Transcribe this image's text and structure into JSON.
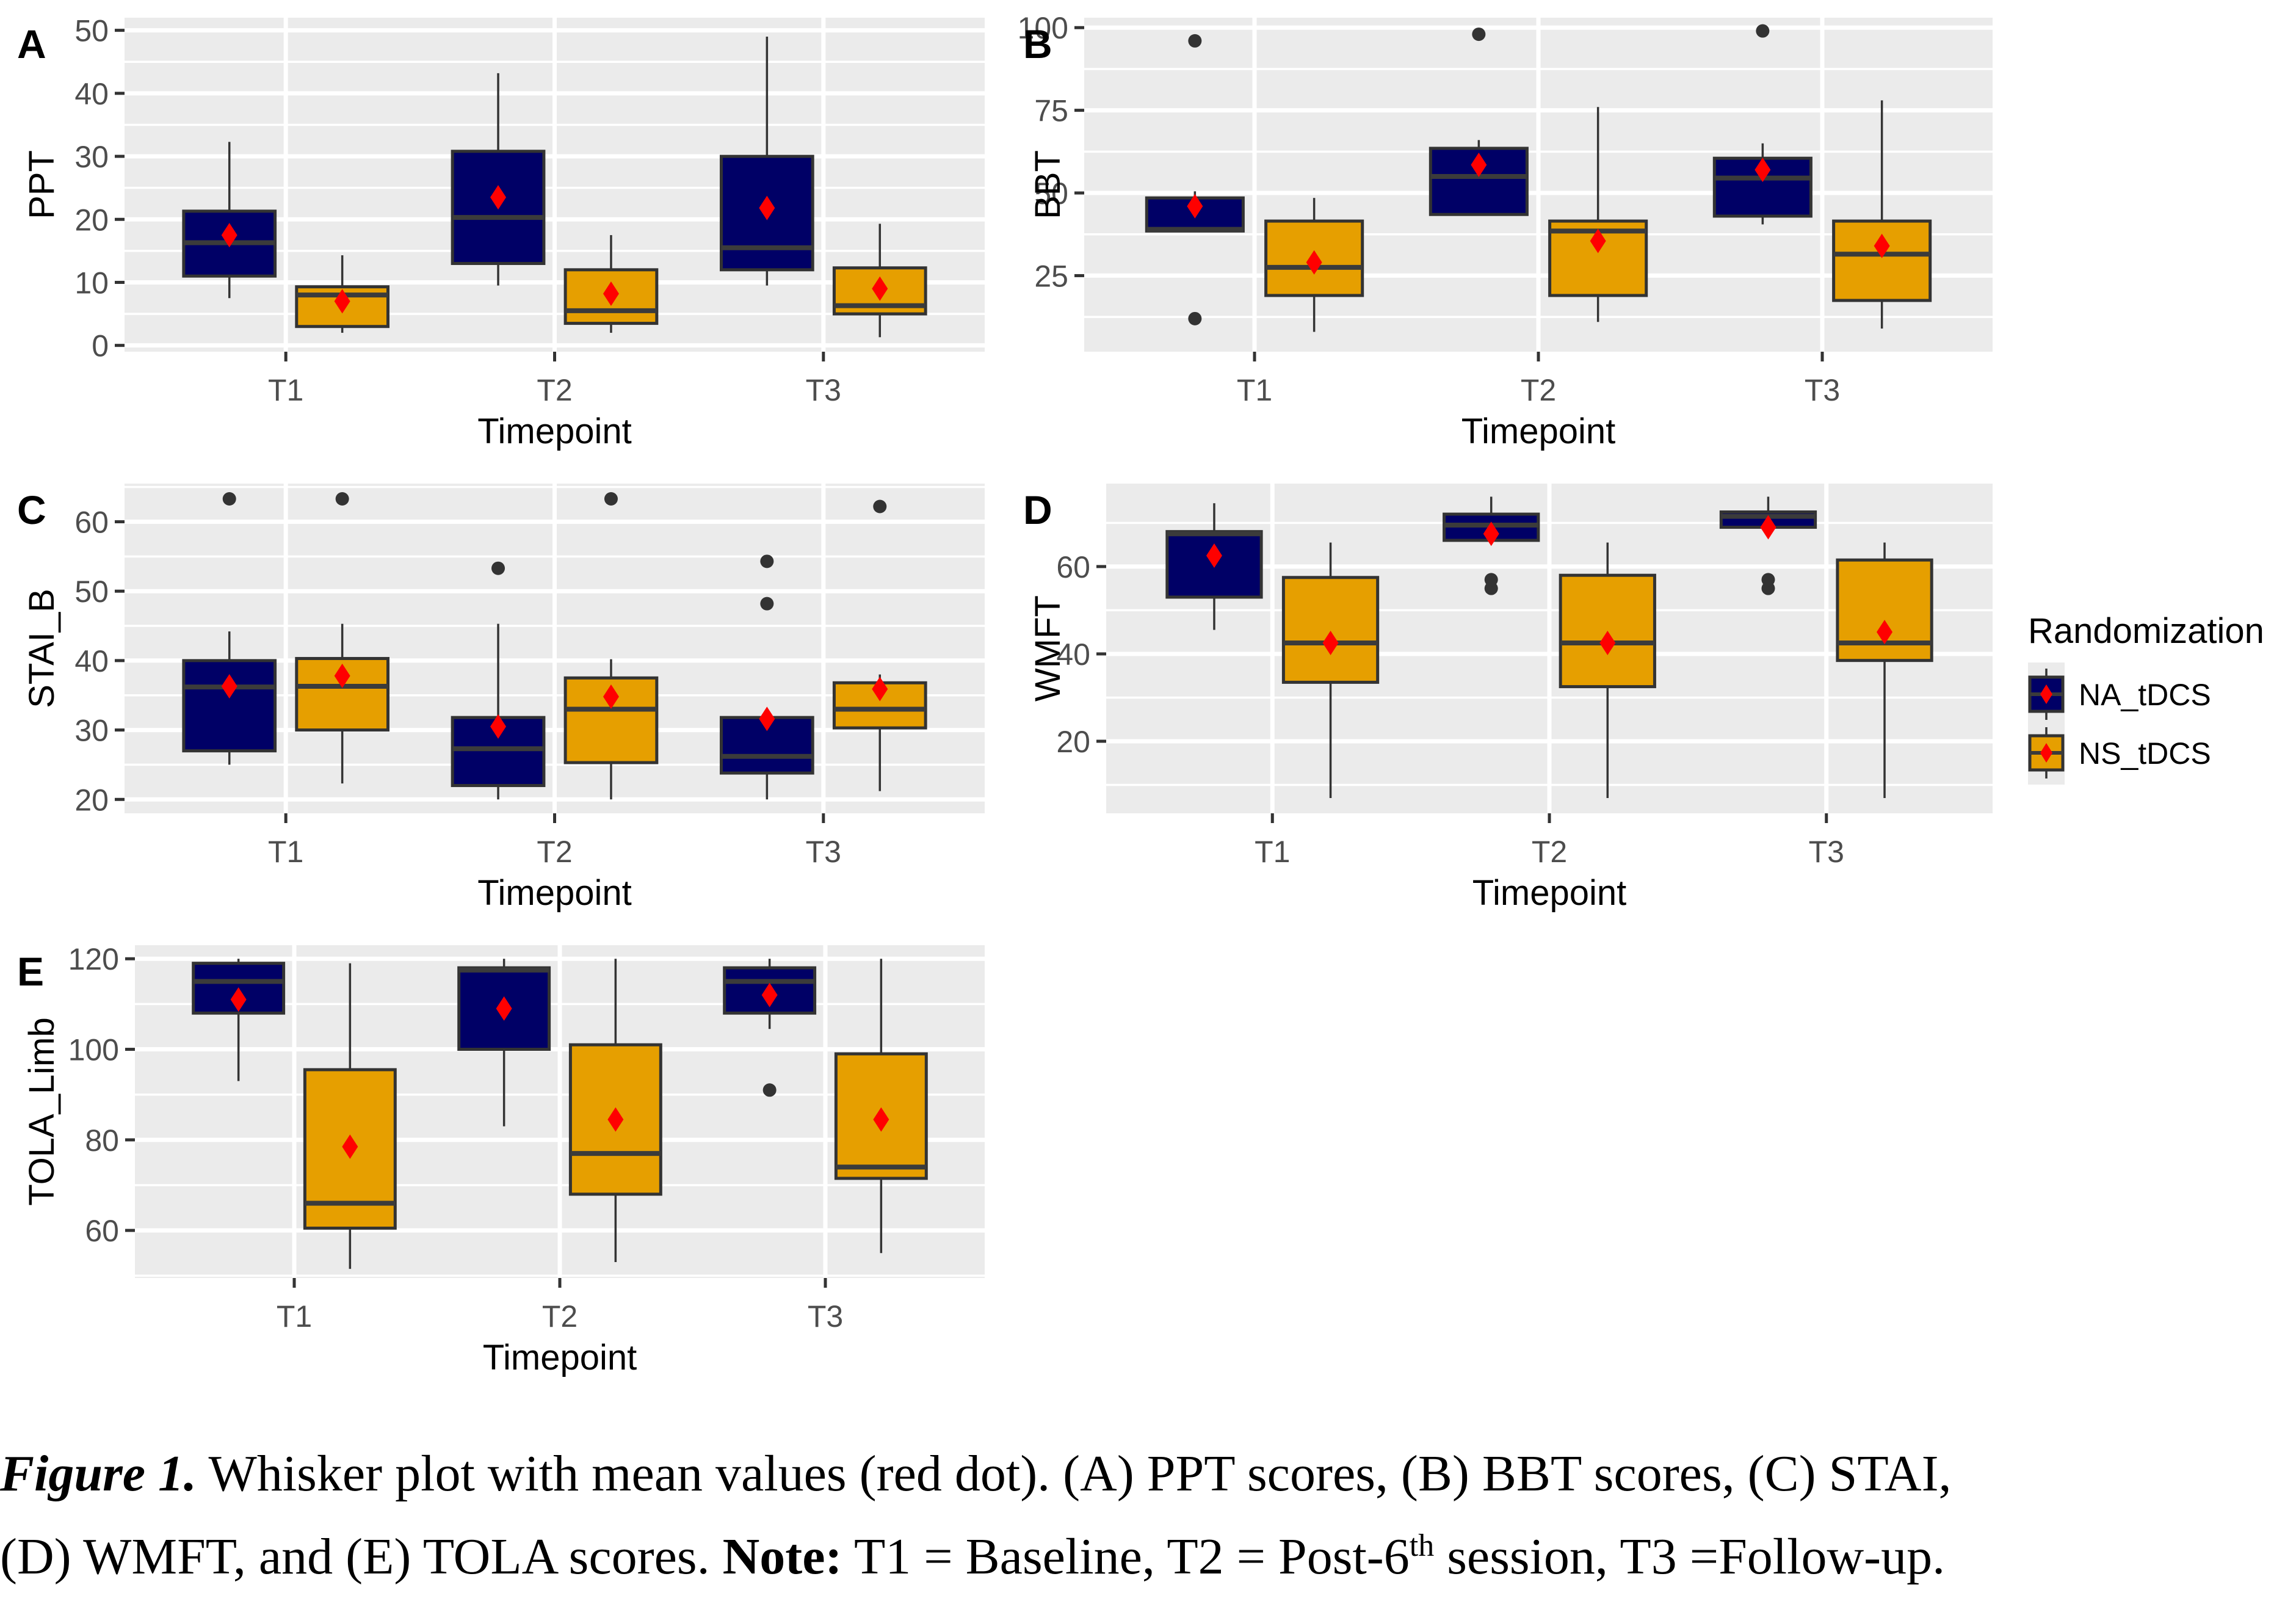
{
  "colors": {
    "NA_tDCS": "#000066",
    "NS_tDCS": "#E69F00",
    "mean": "#FF0000",
    "outlier": "#333333",
    "panel_bg": "#EBEBEB",
    "grid": "#FFFFFF",
    "median": "#3B3B3B"
  },
  "legend": {
    "title": "Randomization",
    "items": [
      "NA_tDCS",
      "NS_tDCS"
    ],
    "position": "right"
  },
  "caption": {
    "figure_label": "Figure 1.",
    "line1_rest": " Whisker plot with mean values (red dot). (A) PPT scores, (B) BBT scores, (C) STAI,",
    "line2_a": "(D) WMFT, and (E) TOLA scores. ",
    "note_label": "Note:",
    "line2_b": " T1 = Baseline, T2 = Post-6",
    "sup": "th",
    "line2_c": " session, T3 =Follow-up."
  },
  "chart_data": [
    {
      "type": "box",
      "panel": "A",
      "ylabel": "PPT",
      "xlabel": "Timepoint",
      "categories": [
        "T1",
        "T2",
        "T3"
      ],
      "ylim": [
        -1,
        52
      ],
      "yticks": [
        0,
        10,
        20,
        30,
        40,
        50
      ],
      "series": [
        {
          "name": "NA_tDCS",
          "boxes": [
            {
              "lower": 7.5,
              "q1": 11,
              "median": 16.3,
              "q3": 21.3,
              "upper": 32.3,
              "mean": 17.5,
              "outliers": []
            },
            {
              "lower": 9.5,
              "q1": 13,
              "median": 20.3,
              "q3": 30.8,
              "upper": 43.2,
              "mean": 23.5,
              "outliers": []
            },
            {
              "lower": 9.5,
              "q1": 12,
              "median": 15.5,
              "q3": 30,
              "upper": 49,
              "mean": 21.8,
              "outliers": []
            }
          ]
        },
        {
          "name": "NS_tDCS",
          "boxes": [
            {
              "lower": 2,
              "q1": 3,
              "median": 8,
              "q3": 9.3,
              "upper": 14.3,
              "mean": 7,
              "outliers": []
            },
            {
              "lower": 2,
              "q1": 3.5,
              "median": 5.5,
              "q3": 12,
              "upper": 17.5,
              "mean": 8.2,
              "outliers": []
            },
            {
              "lower": 1.3,
              "q1": 5,
              "median": 6.3,
              "q3": 12.3,
              "upper": 19.3,
              "mean": 9,
              "outliers": []
            }
          ]
        }
      ]
    },
    {
      "type": "box",
      "panel": "B",
      "ylabel": "BBT",
      "xlabel": "Timepoint",
      "categories": [
        "T1",
        "T2",
        "T3"
      ],
      "ylim": [
        2,
        103
      ],
      "yticks": [
        25,
        50,
        75,
        100
      ],
      "series": [
        {
          "name": "NA_tDCS",
          "boxes": [
            {
              "lower": 38.5,
              "q1": 38.5,
              "median": 39,
              "q3": 48.5,
              "upper": 50.5,
              "mean": 46,
              "outliers": [
                12,
                96
              ]
            },
            {
              "lower": 43.5,
              "q1": 43.5,
              "median": 55,
              "q3": 63.5,
              "upper": 66,
              "mean": 58.5,
              "outliers": [
                98
              ]
            },
            {
              "lower": 40.5,
              "q1": 43,
              "median": 54.5,
              "q3": 60.5,
              "upper": 65,
              "mean": 57,
              "outliers": [
                99
              ]
            }
          ]
        },
        {
          "name": "NS_tDCS",
          "boxes": [
            {
              "lower": 8,
              "q1": 19,
              "median": 27.5,
              "q3": 41.5,
              "upper": 48.5,
              "mean": 29,
              "outliers": []
            },
            {
              "lower": 11,
              "q1": 19,
              "median": 38.5,
              "q3": 41.5,
              "upper": 76,
              "mean": 35.5,
              "outliers": []
            },
            {
              "lower": 9,
              "q1": 17.5,
              "median": 31.5,
              "q3": 41.5,
              "upper": 78,
              "mean": 34,
              "outliers": []
            }
          ]
        }
      ]
    },
    {
      "type": "box",
      "panel": "C",
      "ylabel": "STAI_B",
      "xlabel": "Timepoint",
      "categories": [
        "T1",
        "T2",
        "T3"
      ],
      "ylim": [
        18,
        65.5
      ],
      "yticks": [
        20,
        30,
        40,
        50,
        60
      ],
      "series": [
        {
          "name": "NA_tDCS",
          "boxes": [
            {
              "lower": 25,
              "q1": 27,
              "median": 36.2,
              "q3": 40,
              "upper": 44.2,
              "mean": 36.3,
              "outliers": [
                63.3
              ]
            },
            {
              "lower": 20,
              "q1": 22,
              "median": 27.3,
              "q3": 31.8,
              "upper": 45.3,
              "mean": 30.5,
              "outliers": [
                53.3
              ]
            },
            {
              "lower": 20,
              "q1": 23.8,
              "median": 26.2,
              "q3": 31.8,
              "upper": 31.8,
              "mean": 31.6,
              "outliers": [
                48.2,
                54.3
              ]
            }
          ]
        },
        {
          "name": "NS_tDCS",
          "boxes": [
            {
              "lower": 22.3,
              "q1": 30,
              "median": 36.3,
              "q3": 40.3,
              "upper": 45.3,
              "mean": 37.8,
              "outliers": [
                63.3
              ]
            },
            {
              "lower": 20,
              "q1": 25.3,
              "median": 33,
              "q3": 37.5,
              "upper": 40.2,
              "mean": 34.8,
              "outliers": [
                63.3
              ]
            },
            {
              "lower": 21.2,
              "q1": 30.3,
              "median": 33,
              "q3": 36.8,
              "upper": 38,
              "mean": 35.9,
              "outliers": [
                62.2
              ]
            }
          ]
        }
      ]
    },
    {
      "type": "box",
      "panel": "D",
      "ylabel": "WMFT",
      "xlabel": "Timepoint",
      "categories": [
        "T1",
        "T2",
        "T3"
      ],
      "ylim": [
        3.5,
        79
      ],
      "yticks": [
        20,
        40,
        60
      ],
      "series": [
        {
          "name": "NA_tDCS",
          "boxes": [
            {
              "lower": 45.5,
              "q1": 53,
              "median": 67.5,
              "q3": 68,
              "upper": 74.5,
              "mean": 62.5,
              "outliers": []
            },
            {
              "lower": 66,
              "q1": 66,
              "median": 69.5,
              "q3": 72,
              "upper": 76,
              "mean": 67.5,
              "outliers": [
                55,
                57
              ]
            },
            {
              "lower": 69,
              "q1": 69,
              "median": 71.5,
              "q3": 72.5,
              "upper": 76,
              "mean": 69,
              "outliers": [
                55,
                57
              ]
            }
          ]
        },
        {
          "name": "NS_tDCS",
          "boxes": [
            {
              "lower": 7,
              "q1": 33.5,
              "median": 42.5,
              "q3": 57.5,
              "upper": 65.5,
              "mean": 42.5,
              "outliers": []
            },
            {
              "lower": 7,
              "q1": 32.5,
              "median": 42.5,
              "q3": 58,
              "upper": 65.5,
              "mean": 42.5,
              "outliers": []
            },
            {
              "lower": 7,
              "q1": 38.5,
              "median": 42.5,
              "q3": 61.5,
              "upper": 65.5,
              "mean": 45,
              "outliers": []
            }
          ]
        }
      ]
    },
    {
      "type": "box",
      "panel": "E",
      "ylabel": "TOLA_Limb",
      "xlabel": "Timepoint",
      "categories": [
        "T1",
        "T2",
        "T3"
      ],
      "ylim": [
        49.5,
        123
      ],
      "yticks": [
        60,
        80,
        100,
        120
      ],
      "series": [
        {
          "name": "NA_tDCS",
          "boxes": [
            {
              "lower": 93,
              "q1": 108,
              "median": 115,
              "q3": 119,
              "upper": 120,
              "mean": 111,
              "outliers": []
            },
            {
              "lower": 83,
              "q1": 100,
              "median": 117.5,
              "q3": 118,
              "upper": 120,
              "mean": 109,
              "outliers": []
            },
            {
              "lower": 104.5,
              "q1": 108,
              "median": 115,
              "q3": 118,
              "upper": 120,
              "mean": 112,
              "outliers": [
                91
              ]
            }
          ]
        },
        {
          "name": "NS_tDCS",
          "boxes": [
            {
              "lower": 51.5,
              "q1": 60.5,
              "median": 66,
              "q3": 95.5,
              "upper": 119,
              "mean": 78.5,
              "outliers": []
            },
            {
              "lower": 53,
              "q1": 68,
              "median": 77,
              "q3": 101,
              "upper": 120,
              "mean": 84.5,
              "outliers": []
            },
            {
              "lower": 55,
              "q1": 71.5,
              "median": 74,
              "q3": 99,
              "upper": 120,
              "mean": 84.5,
              "outliers": []
            }
          ]
        }
      ]
    }
  ]
}
